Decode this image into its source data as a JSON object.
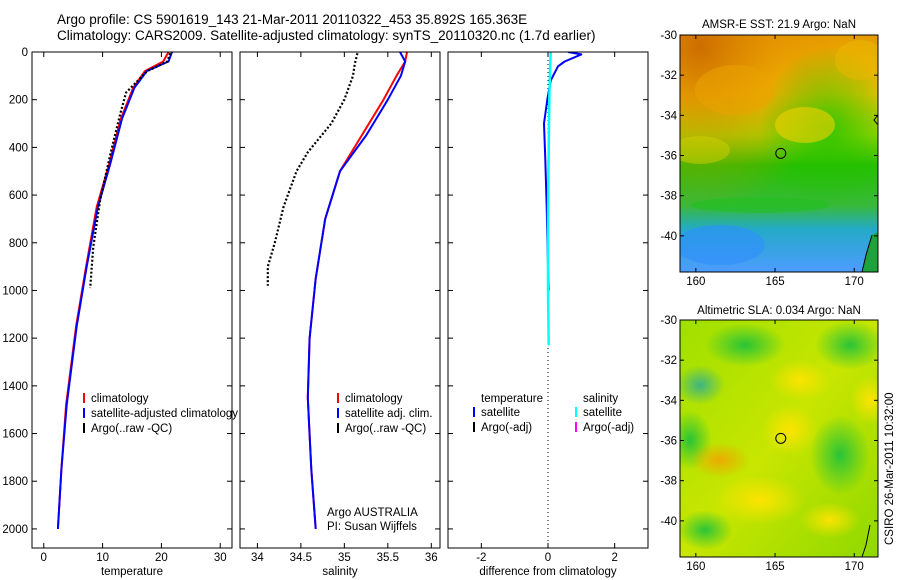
{
  "header": {
    "line1": "Argo profile: CS 5901619_143 21-Mar-2011 20110322_453 35.892S 165.363E",
    "line2": "Climatology: CARS2009. Satellite-adjusted climatology: synTS_20110320.nc (1.7d earlier)"
  },
  "stamp": "CSIRO 26-Mar-2011 10:32:00",
  "colors": {
    "climatology": "#ff0000",
    "satellite": "#0000ff",
    "argo": "#000000",
    "salinity_sat": "#00ffff",
    "salinity_argo": "#ff00ff"
  },
  "chart_data": [
    {
      "type": "line",
      "xlabel": "temperature",
      "ylabel": "",
      "xlim": [
        -2,
        32
      ],
      "ylim": [
        2080,
        0
      ],
      "xticks": [
        0,
        10,
        20,
        30
      ],
      "yticks": [
        0,
        200,
        400,
        600,
        800,
        1000,
        1200,
        1400,
        1600,
        1800,
        2000
      ],
      "legend": {
        "placement": "lower-right",
        "entries": [
          "climatology",
          "satellite-adjusted climatology",
          "Argo(..raw -QC)"
        ]
      },
      "series": [
        {
          "name": "climatology",
          "color": "#ff0000",
          "x": [
            21.2,
            20.3,
            17.2,
            15.2,
            13.1,
            11.1,
            9.0,
            7.2,
            5.5,
            3.8,
            3.0,
            2.4
          ],
          "y": [
            0,
            40,
            80,
            150,
            280,
            470,
            650,
            900,
            1150,
            1480,
            1750,
            2000
          ]
        },
        {
          "name": "satellite-adjusted climatology",
          "color": "#0000ff",
          "x": [
            21.8,
            21.2,
            17.5,
            15.4,
            13.3,
            11.3,
            9.2,
            7.3,
            5.6,
            3.9,
            3.0,
            2.4
          ],
          "y": [
            0,
            40,
            80,
            150,
            280,
            470,
            650,
            900,
            1150,
            1480,
            1750,
            2000
          ]
        },
        {
          "name": "Argo(..raw -QC)",
          "color": "#000000",
          "x": [
            21.5,
            21.0,
            17.6,
            14.0,
            13.0,
            11.4,
            9.6,
            8.4,
            7.9
          ],
          "y": [
            5,
            40,
            80,
            170,
            260,
            420,
            620,
            820,
            990
          ]
        }
      ]
    },
    {
      "type": "line",
      "xlabel": "salinity",
      "ylabel": "",
      "xlim": [
        33.8,
        36.1
      ],
      "ylim": [
        2080,
        0
      ],
      "xticks": [
        34,
        34.5,
        35,
        35.5,
        36
      ],
      "xticklabels": [
        "34",
        "34.5",
        "35",
        "35.5",
        "36"
      ],
      "legend": {
        "placement": "lower-right",
        "entries": [
          "climatology",
          "satellite adj. clim.",
          "Argo(..raw -QC)"
        ]
      },
      "annotation": [
        "Argo AUSTRALIA",
        "PI: Susan Wijffels"
      ],
      "series": [
        {
          "name": "climatology",
          "color": "#ff0000",
          "x": [
            35.72,
            35.7,
            35.6,
            35.45,
            35.2,
            34.95,
            34.78,
            34.67,
            34.6,
            34.58,
            34.62,
            34.67
          ],
          "y": [
            0,
            40,
            100,
            200,
            350,
            500,
            700,
            950,
            1200,
            1450,
            1750,
            2000
          ]
        },
        {
          "name": "satellite adj. clim.",
          "color": "#0000ff",
          "x": [
            35.64,
            35.7,
            35.65,
            35.5,
            35.25,
            34.95,
            34.78,
            34.67,
            34.6,
            34.58,
            34.62,
            34.67
          ],
          "y": [
            0,
            40,
            100,
            200,
            350,
            500,
            700,
            950,
            1200,
            1450,
            1750,
            2000
          ]
        },
        {
          "name": "Argo(..raw -QC)",
          "color": "#000000",
          "x": [
            35.15,
            35.12,
            35.1,
            35.0,
            34.85,
            34.58,
            34.45,
            34.3,
            34.2,
            34.12,
            34.12
          ],
          "y": [
            5,
            50,
            100,
            200,
            300,
            420,
            500,
            650,
            800,
            900,
            980
          ]
        }
      ]
    },
    {
      "type": "line",
      "xlabel": "difference from climatology",
      "ylabel": "",
      "xlim": [
        -3,
        3
      ],
      "ylim": [
        2080,
        0
      ],
      "xticks": [
        -2,
        0,
        2
      ],
      "legend": {
        "placement": "lower-right",
        "headers": [
          "temperature",
          "salinity"
        ],
        "entries": [
          "satellite",
          "Argo(-adj)",
          "satellite",
          "Argo(-adj)"
        ]
      },
      "series": [
        {
          "name": "temperature satellite",
          "color": "#0000ff",
          "x": [
            0.6,
            1.0,
            0.5,
            0.3,
            0.08,
            -0.02,
            -0.12,
            -0.08,
            -0.04,
            0.0,
            0.02
          ],
          "y": [
            0,
            10,
            40,
            60,
            120,
            200,
            300,
            450,
            650,
            900,
            1000
          ]
        },
        {
          "name": "salinity satellite",
          "color": "#00ffff",
          "x": [
            0.08,
            0.06,
            0.04,
            0.02,
            0.0,
            0.0,
            0.02
          ],
          "y": [
            0,
            80,
            200,
            400,
            700,
            1000,
            1230
          ]
        }
      ]
    }
  ],
  "maps": [
    {
      "title": "AMSR-E SST: 21.9 Argo: NaN",
      "xticks": [
        160,
        165,
        170
      ],
      "yticks": [
        -30,
        -32,
        -34,
        -36,
        -38,
        -40
      ],
      "xlim": [
        159,
        171.5
      ],
      "ylim": [
        -41.8,
        -30
      ],
      "marker": {
        "lon": 165.363,
        "lat": -35.892
      }
    },
    {
      "title": "Altimetric SLA: 0.034 Argo: NaN",
      "xticks": [
        160,
        165,
        170
      ],
      "yticks": [
        -30,
        -32,
        -34,
        -36,
        -38,
        -40
      ],
      "xlim": [
        159,
        171.5
      ],
      "ylim": [
        -41.8,
        -30
      ],
      "marker": {
        "lon": 165.363,
        "lat": -35.892
      }
    }
  ]
}
